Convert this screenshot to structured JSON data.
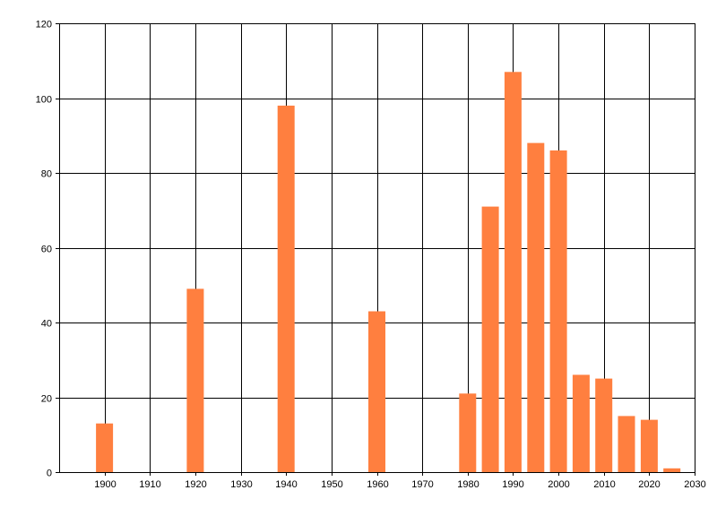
{
  "chart_data": {
    "type": "bar",
    "title": "",
    "xlabel": "",
    "ylabel": "",
    "xlim": [
      1890,
      2030
    ],
    "ylim": [
      0,
      120
    ],
    "grid": true,
    "bar_color": "#FF7F3F",
    "x_ticks": [
      1900,
      1910,
      1920,
      1930,
      1940,
      1950,
      1960,
      1970,
      1980,
      1990,
      2000,
      2010,
      2020,
      2030
    ],
    "y_ticks": [
      0,
      20,
      40,
      60,
      80,
      100,
      120
    ],
    "x": [
      1900,
      1920,
      1940,
      1960,
      1980,
      1985,
      1990,
      1995,
      2000,
      2005,
      2010,
      2015,
      2020,
      2025
    ],
    "values": [
      13,
      49,
      98,
      43,
      21,
      71,
      107,
      88,
      86,
      26,
      25,
      15,
      14,
      1
    ]
  }
}
